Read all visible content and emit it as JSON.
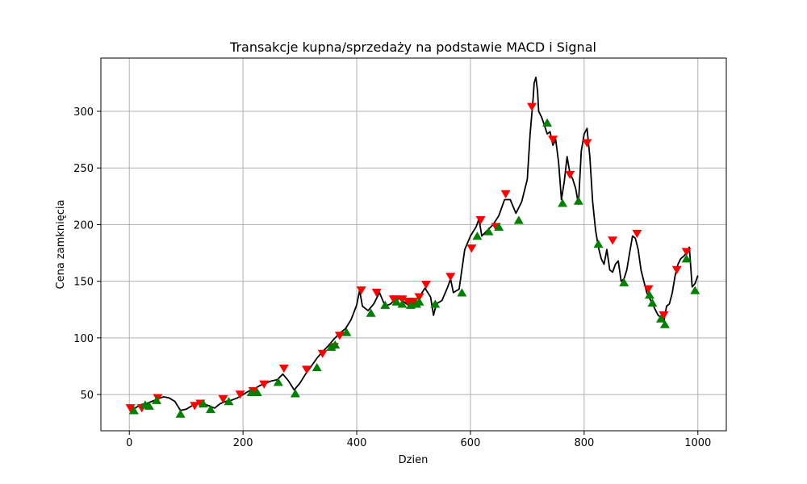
{
  "chart_data": {
    "type": "line",
    "title": "Transakcje kupna/sprzedaży na podstawie MACD i Signal",
    "xlabel": "Dzien",
    "ylabel": "Cena zamknięcia",
    "xlim": [
      -50,
      1050
    ],
    "ylim": [
      18,
      347
    ],
    "xticks": [
      0,
      200,
      400,
      600,
      800,
      1000
    ],
    "yticks": [
      50,
      100,
      150,
      200,
      250,
      300
    ],
    "grid": true,
    "colors": {
      "price": "#000000",
      "buy": "#008000",
      "sell": "#ff0000",
      "grid": "#b0b0b0"
    },
    "series": [
      {
        "x": [
          0,
          10,
          20,
          30,
          40,
          50,
          60,
          70,
          80,
          90,
          100,
          110,
          120,
          130,
          140,
          150,
          160,
          170,
          180,
          190,
          200,
          210,
          220,
          230,
          240,
          250,
          260,
          270,
          280,
          290,
          300,
          310,
          320,
          330,
          340,
          350,
          360,
          370,
          380,
          390,
          400,
          405,
          410,
          415,
          420,
          430,
          440,
          450,
          460,
          470,
          480,
          490,
          500,
          510,
          520,
          530,
          535,
          540,
          550,
          560,
          565,
          570,
          580,
          590,
          600,
          610,
          615,
          620,
          630,
          640,
          650,
          660,
          670,
          680,
          690,
          700,
          705,
          710,
          712,
          715,
          718,
          720,
          725,
          730,
          735,
          740,
          745,
          750,
          755,
          760,
          765,
          770,
          775,
          780,
          785,
          790,
          795,
          800,
          805,
          810,
          815,
          820,
          825,
          830,
          835,
          840,
          845,
          850,
          855,
          860,
          865,
          870,
          875,
          880,
          885,
          890,
          895,
          900,
          905,
          910,
          915,
          920,
          925,
          930,
          935,
          940,
          945,
          950,
          955,
          960,
          965,
          970,
          975,
          980,
          985,
          990,
          995,
          1000
        ],
        "values": [
          37,
          38,
          41,
          42,
          44,
          46,
          48,
          47,
          44,
          36,
          37,
          40,
          42,
          42,
          40,
          38,
          42,
          44,
          45,
          47,
          50,
          53,
          55,
          58,
          60,
          62,
          63,
          68,
          62,
          54,
          60,
          68,
          75,
          82,
          88,
          93,
          99,
          104,
          108,
          116,
          129,
          142,
          128,
          126,
          124,
          130,
          140,
          128,
          130,
          136,
          133,
          129,
          132,
          136,
          144,
          136,
          120,
          130,
          133,
          145,
          152,
          140,
          143,
          178,
          190,
          198,
          205,
          190,
          195,
          200,
          208,
          222,
          222,
          210,
          220,
          240,
          280,
          310,
          325,
          330,
          318,
          300,
          295,
          288,
          280,
          282,
          270,
          275,
          255,
          222,
          238,
          260,
          245,
          240,
          232,
          218,
          265,
          280,
          285,
          260,
          220,
          195,
          180,
          170,
          165,
          178,
          160,
          158,
          165,
          168,
          150,
          152,
          160,
          175,
          190,
          188,
          178,
          160,
          150,
          140,
          135,
          130,
          125,
          120,
          118,
          114,
          128,
          130,
          140,
          155,
          165,
          170,
          172,
          175,
          180,
          145,
          148,
          155
        ]
      }
    ],
    "buy_signals": {
      "x": [
        8,
        28,
        35,
        48,
        90,
        130,
        143,
        175,
        215,
        225,
        262,
        292,
        330,
        355,
        362,
        382,
        425,
        450,
        470,
        480,
        495,
        505,
        510,
        538,
        585,
        612,
        632,
        650,
        685,
        735,
        762,
        790,
        825,
        870,
        915,
        920,
        935,
        942,
        980,
        995
      ],
      "y": [
        36,
        41,
        40,
        45,
        33,
        42,
        37,
        44,
        52,
        52,
        61,
        51,
        74,
        92,
        94,
        105,
        122,
        129,
        132,
        130,
        129,
        130,
        132,
        130,
        140,
        190,
        194,
        198,
        204,
        290,
        219,
        221,
        183,
        149,
        138,
        131,
        117,
        112,
        170,
        142
      ]
    },
    "sell_signals": {
      "x": [
        2,
        22,
        50,
        115,
        125,
        165,
        195,
        218,
        237,
        272,
        312,
        340,
        360,
        370,
        408,
        435,
        465,
        470,
        480,
        490,
        500,
        510,
        522,
        565,
        602,
        618,
        645,
        662,
        708,
        745,
        775,
        805,
        850,
        893,
        913,
        940,
        963,
        980
      ],
      "y": [
        38,
        38,
        47,
        40,
        42,
        46,
        50,
        53,
        59,
        73,
        72,
        86,
        92,
        102,
        142,
        140,
        134,
        134,
        134,
        132,
        132,
        136,
        147,
        154,
        179,
        204,
        198,
        227,
        304,
        275,
        244,
        272,
        186,
        192,
        143,
        120,
        160,
        176
      ]
    }
  }
}
